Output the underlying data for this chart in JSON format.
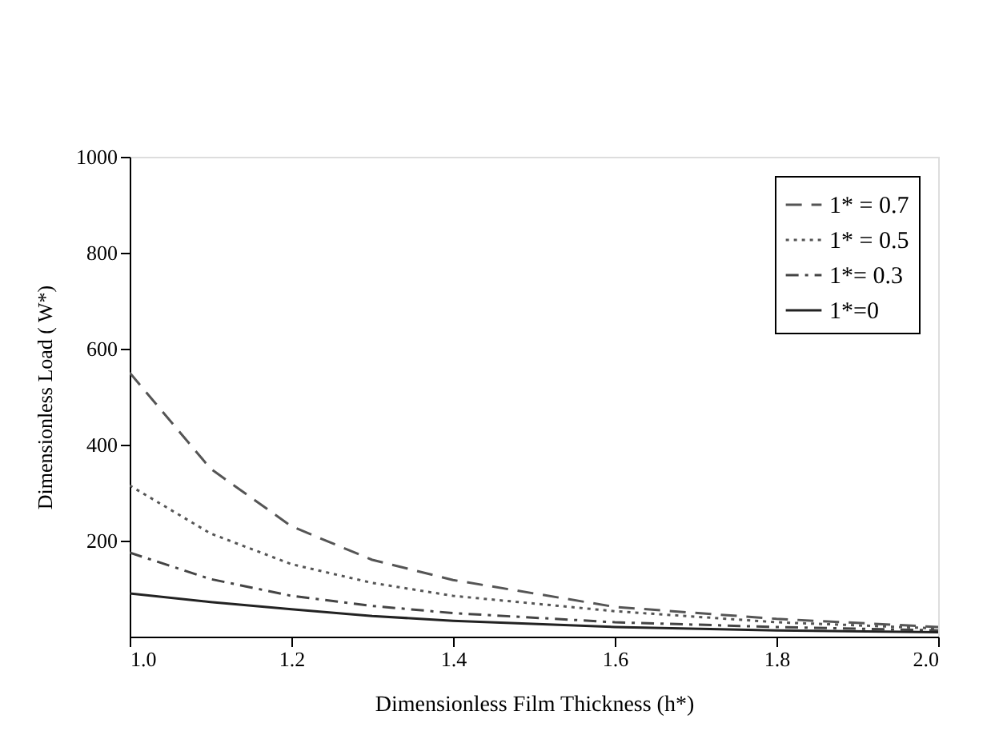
{
  "chart_data": {
    "type": "line",
    "xlabel": "Dimensionless Film  Thickness (h*)",
    "ylabel": "Dimensionless Load ( W*)",
    "x": [
      1.0,
      1.1,
      1.2,
      1.3,
      1.4,
      1.6,
      1.8,
      2.0
    ],
    "series": [
      {
        "name": "1* = 0.7",
        "color": "#555555",
        "line_style": "dashed",
        "values": [
          550,
          350,
          230,
          160,
          118,
          62,
          37,
          20
        ]
      },
      {
        "name": "1* = 0.5",
        "color": "#555555",
        "line_style": "dotted",
        "values": [
          315,
          215,
          151,
          112,
          85,
          53,
          30,
          17
        ]
      },
      {
        "name": "1*= 0.3",
        "color": "#444444",
        "line_style": "dashdot",
        "values": [
          175,
          120,
          85,
          64,
          49,
          30,
          20,
          13
        ]
      },
      {
        "name": "1*=0",
        "color": "#222222",
        "line_style": "solid",
        "values": [
          90,
          72,
          57,
          43,
          33,
          20,
          13,
          9
        ]
      }
    ],
    "xlim": [
      1.0,
      2.0
    ],
    "xticks": [
      {
        "value": 1.0,
        "label": "1.0"
      },
      1.2,
      1.4,
      1.6,
      1.8,
      {
        "value": 2.0,
        "label": "2.0"
      }
    ],
    "ylim": [
      0,
      1000
    ],
    "yticks": [
      200,
      400,
      600,
      800,
      {
        "value": 1000,
        "label": "1000"
      }
    ],
    "grid": false,
    "legend": "top right",
    "marker": "none"
  }
}
